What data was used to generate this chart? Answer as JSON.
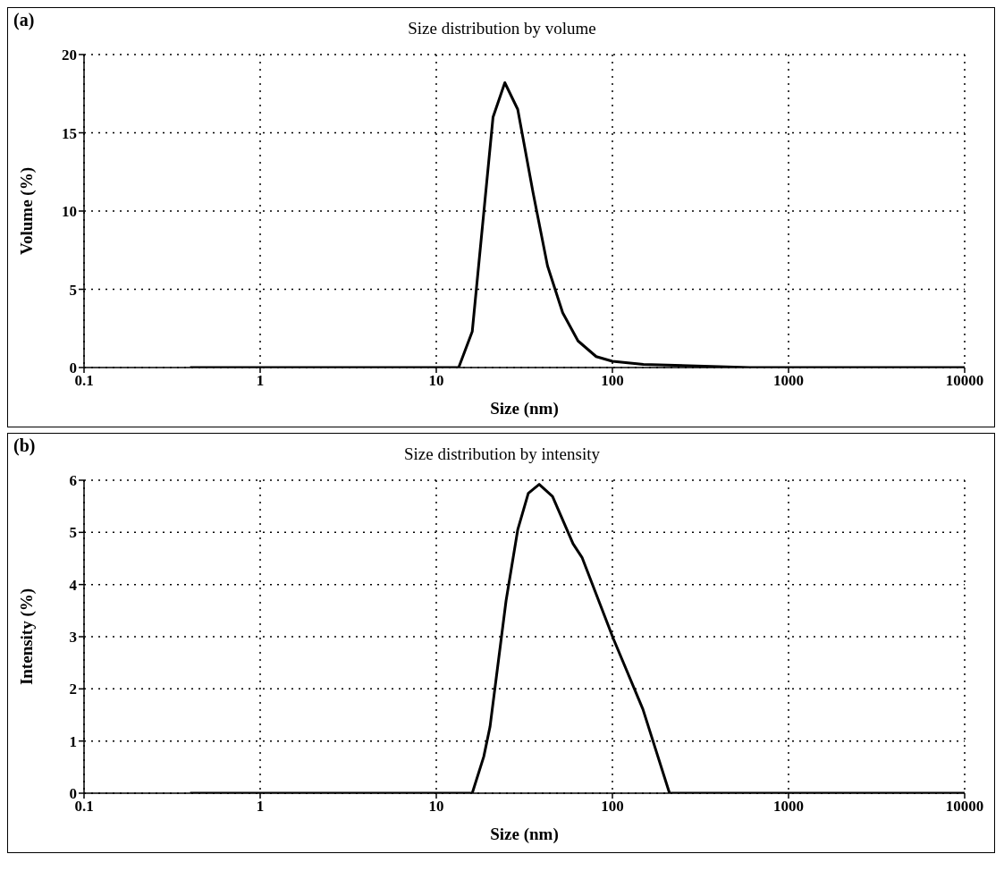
{
  "chart_data": [
    {
      "type": "line",
      "title": "Size distribution by volume",
      "xlabel": "Size (nm)",
      "ylabel": "Volume (%)",
      "annotations": [
        "(a)"
      ],
      "log": "x",
      "xlim": [
        0.1,
        10000
      ],
      "xticks": [
        0.1,
        1,
        10,
        100,
        1000,
        10000
      ],
      "ylim": [
        0,
        20
      ],
      "yticks": [
        0,
        5,
        10,
        15,
        20
      ],
      "grid": true,
      "series": [
        {
          "color": "#000000",
          "x": [
            0.4,
            13.4,
            16.0,
            21.0,
            24.5,
            29.0,
            35.4,
            42.8,
            52.2,
            63.8,
            80.9,
            100,
            150,
            300,
            600,
            10000
          ],
          "values": [
            0,
            0,
            2.3,
            16.0,
            18.2,
            16.5,
            11.2,
            6.5,
            3.5,
            1.7,
            0.7,
            0.4,
            0.2,
            0.1,
            0,
            0
          ]
        }
      ]
    },
    {
      "type": "line",
      "title": "Size distribution by intensity",
      "xlabel": "Size (nm)",
      "ylabel": "Intensity (%)",
      "annotations": [
        "(b)"
      ],
      "log": "x",
      "xlim": [
        0.1,
        10000
      ],
      "xticks": [
        0.1,
        1,
        10,
        100,
        1000,
        10000
      ],
      "ylim": [
        0,
        6
      ],
      "yticks": [
        0,
        1,
        2,
        3,
        4,
        5,
        6
      ],
      "grid": true,
      "series": [
        {
          "color": "#000000",
          "x": [
            0.4,
            16.0,
            18.6,
            20.2,
            24.9,
            29.0,
            33.3,
            38.4,
            45.7,
            59.8,
            67.2,
            101,
            149,
            211,
            10000
          ],
          "values": [
            0,
            0,
            0.7,
            1.28,
            3.69,
            5.05,
            5.75,
            5.92,
            5.69,
            4.78,
            4.52,
            2.97,
            1.61,
            0,
            0
          ]
        }
      ]
    }
  ]
}
